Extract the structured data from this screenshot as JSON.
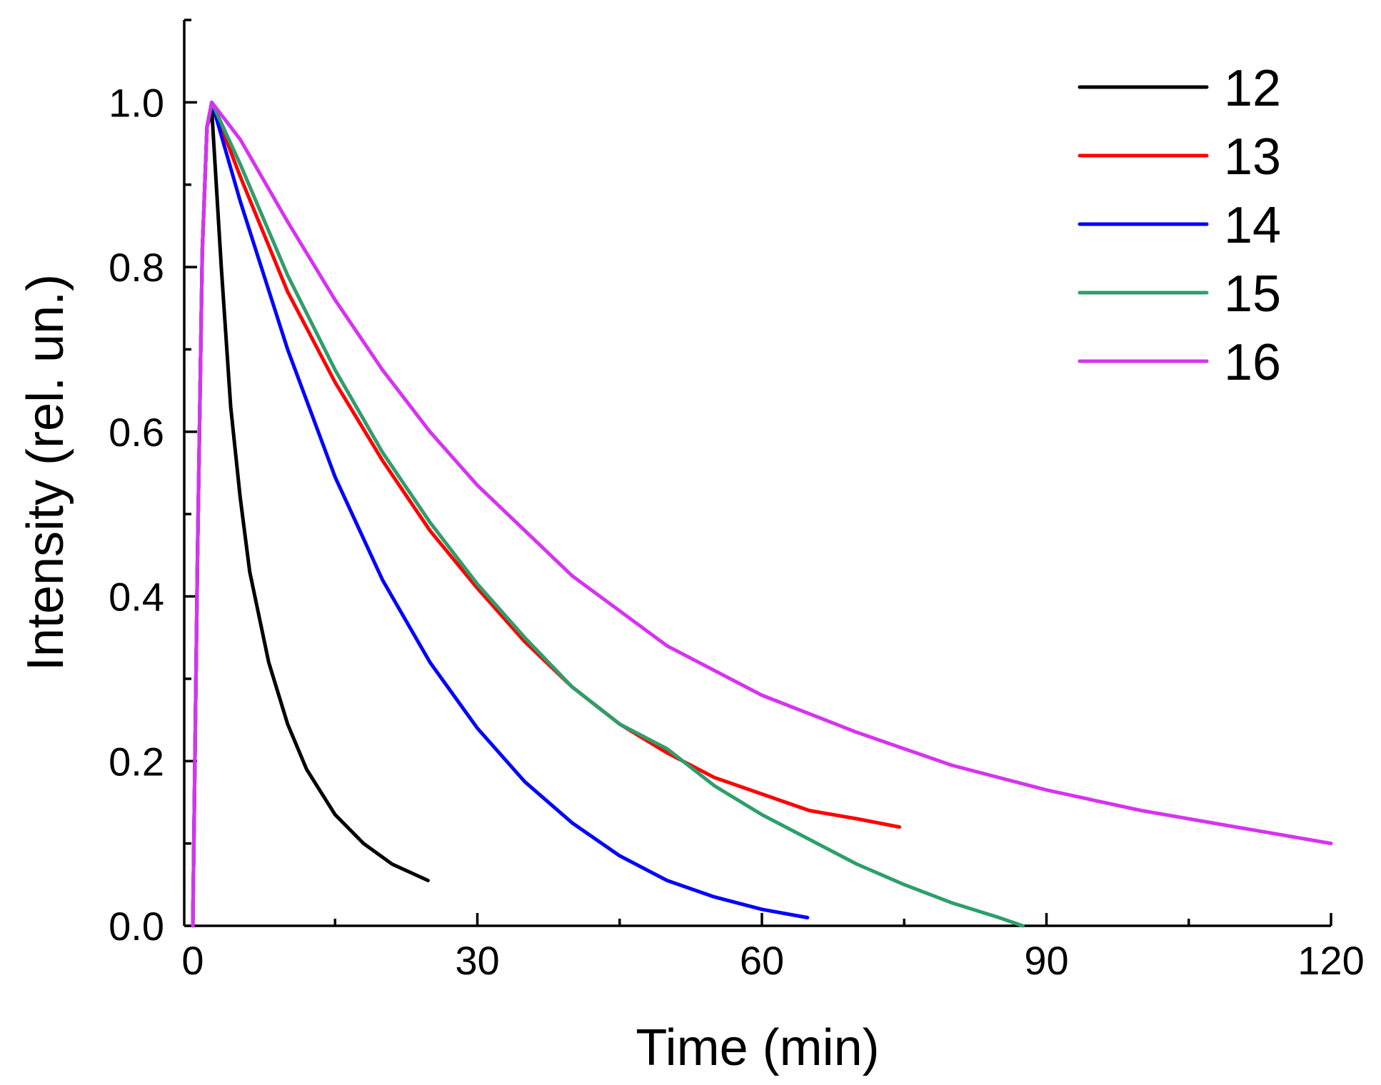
{
  "chart_data": {
    "type": "line",
    "title": "",
    "xlabel": "Time (min)",
    "ylabel": "Intensity (rel. un.)",
    "xlim": [
      0,
      120
    ],
    "ylim": [
      0,
      1.1
    ],
    "xticks": [
      0,
      30,
      60,
      90,
      120
    ],
    "xtick_labels": [
      "0",
      "30",
      "60",
      "90",
      "120"
    ],
    "yticks": [
      0.0,
      0.2,
      0.4,
      0.6,
      0.8,
      1.0
    ],
    "ytick_labels": [
      "0.0",
      "0.2",
      "0.4",
      "0.6",
      "0.8",
      "1.0"
    ],
    "grid": false,
    "legend_position": "top-right",
    "series": [
      {
        "name": "12",
        "color": "#000000",
        "x": [
          0,
          0.5,
          1.0,
          1.5,
          2.0,
          3,
          4,
          5,
          6,
          8,
          10,
          12,
          15,
          18,
          21,
          24.8
        ],
        "y": [
          0,
          0.45,
          0.82,
          0.97,
          0.99,
          0.8,
          0.63,
          0.52,
          0.43,
          0.32,
          0.245,
          0.19,
          0.135,
          0.1,
          0.075,
          0.055
        ]
      },
      {
        "name": "13",
        "color": "#ff0000",
        "x": [
          0,
          0.5,
          1.0,
          1.5,
          2.0,
          5,
          10,
          15,
          20,
          25,
          30,
          35,
          40,
          45,
          50,
          55,
          60,
          65,
          70,
          74.5
        ],
        "y": [
          0,
          0.45,
          0.82,
          0.97,
          1.0,
          0.91,
          0.77,
          0.66,
          0.565,
          0.48,
          0.41,
          0.345,
          0.29,
          0.245,
          0.21,
          0.18,
          0.16,
          0.14,
          0.13,
          0.12
        ]
      },
      {
        "name": "14",
        "color": "#0000ff",
        "x": [
          0,
          0.5,
          1.0,
          1.5,
          2.0,
          5,
          10,
          15,
          20,
          25,
          30,
          35,
          40,
          45,
          50,
          55,
          60,
          64.8
        ],
        "y": [
          0,
          0.45,
          0.82,
          0.97,
          1.0,
          0.88,
          0.7,
          0.545,
          0.42,
          0.32,
          0.24,
          0.175,
          0.125,
          0.085,
          0.055,
          0.035,
          0.02,
          0.01
        ]
      },
      {
        "name": "15",
        "color": "#2e9e6b",
        "x": [
          0,
          0.5,
          1.0,
          1.5,
          2.0,
          5,
          10,
          15,
          20,
          25,
          30,
          35,
          40,
          45,
          50,
          55,
          60,
          65,
          70,
          75,
          80,
          85,
          87.5
        ],
        "y": [
          0,
          0.45,
          0.82,
          0.97,
          1.0,
          0.925,
          0.79,
          0.675,
          0.575,
          0.49,
          0.415,
          0.35,
          0.29,
          0.245,
          0.215,
          0.17,
          0.135,
          0.105,
          0.075,
          0.05,
          0.028,
          0.01,
          0.0
        ]
      },
      {
        "name": "16",
        "color": "#d633f0",
        "x": [
          0,
          0.5,
          1.0,
          1.5,
          2.0,
          5,
          10,
          15,
          20,
          25,
          30,
          40,
          50,
          60,
          70,
          80,
          90,
          100,
          110,
          120
        ],
        "y": [
          0,
          0.45,
          0.82,
          0.97,
          1.0,
          0.955,
          0.855,
          0.76,
          0.675,
          0.6,
          0.535,
          0.425,
          0.34,
          0.28,
          0.235,
          0.195,
          0.165,
          0.14,
          0.12,
          0.1
        ]
      }
    ]
  }
}
